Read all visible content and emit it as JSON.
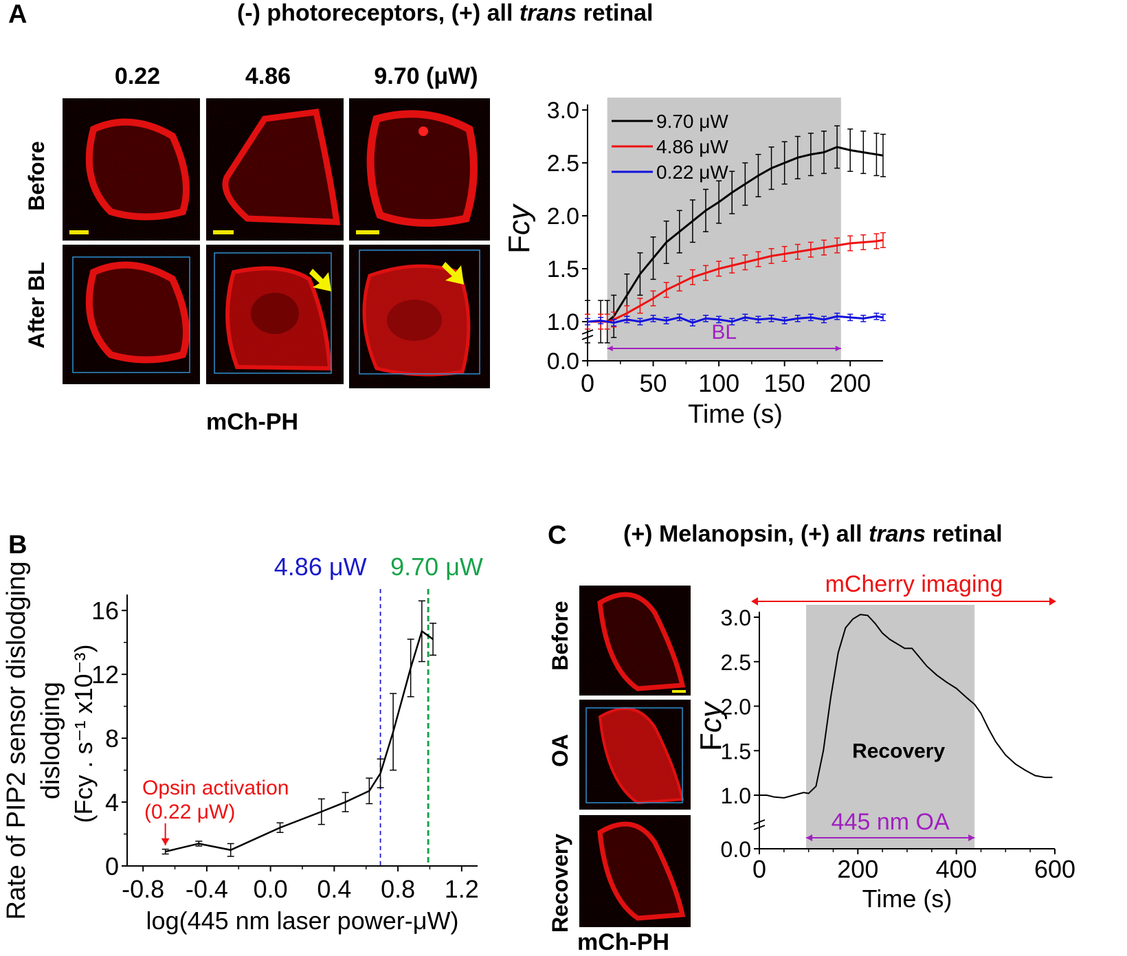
{
  "panelA": {
    "letter": "A",
    "title_pre": "(-) photoreceptors, (+) all ",
    "title_italic": "trans",
    "title_post": " retinal",
    "columns": [
      "0.22",
      "4.86",
      "9.70 (μW)"
    ],
    "rows": [
      "Before",
      "After BL"
    ],
    "image_label": "mCh-PH"
  },
  "panelB": {
    "letter": "B",
    "line_labels": [
      "4.86 μW",
      "9.70 μW"
    ],
    "annotation_line1": "Opsin activation",
    "annotation_line2": "(0.22 μW)"
  },
  "panelC": {
    "letter": "C",
    "title_pre": "(+) Melanopsin, (+) all ",
    "title_italic": "trans",
    "title_post": " retinal",
    "rows": [
      "Before",
      "OA",
      "Recovery"
    ],
    "image_label": "mCh-PH"
  },
  "chart_data": [
    {
      "id": "A-timecourse",
      "type": "line",
      "title": "",
      "xlabel": "Time (s)",
      "ylabel": "Fcy",
      "xlim": [
        0,
        225
      ],
      "ylim": [
        0.0,
        3.0
      ],
      "x_ticks": [
        "0",
        "50",
        "100",
        "150",
        "200"
      ],
      "y_ticks": [
        "0.0",
        "1.0",
        "1.5",
        "2.0",
        "2.5",
        "3.0"
      ],
      "shaded_region": [
        15,
        193
      ],
      "bar_label": "BL",
      "colors": {
        "9.70 μW": "#000000",
        "4.86 μW": "#ee1111",
        "0.22 μW": "#1111dd",
        "shade": "#c8c8c8",
        "bl": "#a020c0"
      },
      "series": [
        {
          "name": "9.70 μW",
          "x": [
            0,
            10,
            15,
            20,
            30,
            40,
            50,
            60,
            70,
            80,
            90,
            100,
            110,
            120,
            130,
            140,
            150,
            160,
            170,
            180,
            190,
            200,
            210,
            220,
            225
          ],
          "y": [
            1.0,
            1.0,
            1.0,
            1.05,
            1.25,
            1.45,
            1.6,
            1.75,
            1.85,
            1.95,
            2.05,
            2.13,
            2.22,
            2.3,
            2.38,
            2.45,
            2.5,
            2.55,
            2.58,
            2.6,
            2.65,
            2.62,
            2.6,
            2.58,
            2.57
          ],
          "err": 0.2
        },
        {
          "name": "4.86 μW",
          "x": [
            0,
            10,
            15,
            20,
            30,
            40,
            50,
            60,
            70,
            80,
            90,
            100,
            110,
            120,
            130,
            140,
            150,
            160,
            170,
            180,
            190,
            200,
            210,
            220,
            225
          ],
          "y": [
            1.0,
            1.0,
            1.0,
            1.02,
            1.08,
            1.15,
            1.22,
            1.3,
            1.36,
            1.42,
            1.46,
            1.5,
            1.53,
            1.56,
            1.59,
            1.62,
            1.64,
            1.66,
            1.68,
            1.7,
            1.72,
            1.74,
            1.75,
            1.76,
            1.77
          ],
          "err": 0.07
        },
        {
          "name": "0.22 μW",
          "x": [
            0,
            10,
            20,
            30,
            40,
            50,
            60,
            70,
            80,
            90,
            100,
            110,
            120,
            130,
            140,
            150,
            160,
            170,
            180,
            190,
            200,
            210,
            220,
            225
          ],
          "y": [
            1.0,
            1.01,
            0.99,
            1.02,
            1.0,
            1.03,
            1.01,
            1.04,
            0.99,
            1.03,
            1.02,
            1.0,
            1.04,
            1.02,
            1.03,
            1.01,
            1.03,
            1.04,
            1.02,
            1.05,
            1.04,
            1.03,
            1.05,
            1.04
          ],
          "err": 0.03
        }
      ]
    },
    {
      "id": "B-rate",
      "type": "line",
      "title": "",
      "xlabel": "log(445 nm laser power-μW)",
      "ylabel": "Rate of PIP2 sensor dislodging",
      "ylabel2": "(Fcy . s⁻¹ x10⁻³)",
      "xlim": [
        -0.9,
        1.3
      ],
      "ylim": [
        0,
        17
      ],
      "x_ticks": [
        "-0.8",
        "-0.4",
        "0.0",
        "0.4",
        "0.8",
        "1.2"
      ],
      "y_ticks": [
        "0",
        "4",
        "8",
        "12",
        "16"
      ],
      "vlines": [
        {
          "x": 0.69,
          "color": "#1a1acc"
        },
        {
          "x": 0.99,
          "color": "#17a34a"
        }
      ],
      "series": [
        {
          "name": "rate",
          "x": [
            -0.66,
            -0.45,
            -0.25,
            0.06,
            0.32,
            0.47,
            0.62,
            0.69,
            0.77,
            0.88,
            0.95,
            1.02
          ],
          "y": [
            0.9,
            1.4,
            1.0,
            2.4,
            3.4,
            4.0,
            4.7,
            5.8,
            8.4,
            12.4,
            14.7,
            14.2
          ],
          "err": [
            0.15,
            0.15,
            0.4,
            0.3,
            0.8,
            0.6,
            0.8,
            0.9,
            2.4,
            1.8,
            1.9,
            1.0
          ]
        }
      ]
    },
    {
      "id": "C-timecourse",
      "type": "line",
      "title": "",
      "xlabel": "Time (s)",
      "ylabel": "Fcy",
      "xlim": [
        0,
        600
      ],
      "ylim": [
        0.0,
        3.0
      ],
      "x_ticks": [
        "0",
        "200",
        "400",
        "600"
      ],
      "y_ticks": [
        "0.0",
        "1.0",
        "1.5",
        "2.0",
        "2.5",
        "3.0"
      ],
      "shaded_region": [
        95,
        437
      ],
      "shade_label": "Recovery",
      "imaging_label": "mCherry imaging",
      "oa_label": "445 nm OA",
      "colors": {
        "line": "#000000",
        "imaging": "#ee1111",
        "oa": "#a020c0",
        "shade": "#c8c8c8"
      },
      "series": [
        {
          "name": "Fcy",
          "x": [
            0,
            15,
            30,
            50,
            70,
            90,
            100,
            115,
            130,
            145,
            160,
            175,
            190,
            205,
            220,
            235,
            250,
            265,
            280,
            295,
            310,
            325,
            340,
            360,
            380,
            400,
            420,
            437,
            450,
            465,
            480,
            500,
            520,
            540,
            560,
            580,
            595
          ],
          "y": [
            1.0,
            1.0,
            0.98,
            0.97,
            1.0,
            1.03,
            1.02,
            1.1,
            1.5,
            2.1,
            2.6,
            2.88,
            2.98,
            3.03,
            3.02,
            2.93,
            2.82,
            2.75,
            2.7,
            2.65,
            2.65,
            2.55,
            2.45,
            2.35,
            2.27,
            2.2,
            2.1,
            2.02,
            1.92,
            1.75,
            1.6,
            1.45,
            1.35,
            1.28,
            1.22,
            1.2,
            1.2
          ]
        }
      ]
    }
  ]
}
